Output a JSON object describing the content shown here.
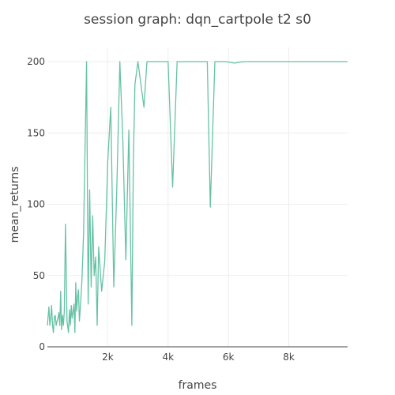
{
  "chart_data": {
    "type": "line",
    "title": "session graph: dqn_cartpole t2 s0",
    "xlabel": "frames",
    "ylabel": "mean_returns",
    "xlim": [
      0,
      9950
    ],
    "ylim": [
      0,
      210
    ],
    "x_ticks": [
      2000,
      4000,
      6000,
      8000
    ],
    "x_tick_labels": [
      "2k",
      "4k",
      "6k",
      "8k"
    ],
    "y_ticks": [
      0,
      50,
      100,
      150,
      200
    ],
    "y_tick_labels": [
      "0",
      "50",
      "100",
      "150",
      "200"
    ],
    "grid": true,
    "legend": "none",
    "line_color": "#66c2a5",
    "series": [
      {
        "x": [
          0,
          50,
          80,
          110,
          140,
          170,
          200,
          230,
          260,
          290,
          320,
          350,
          380,
          410,
          440,
          470,
          500,
          530,
          560,
          600,
          650,
          700,
          730,
          760,
          790,
          820,
          850,
          880,
          910,
          940,
          970,
          1000,
          1030,
          1060,
          1100,
          1150,
          1200,
          1250,
          1300,
          1350,
          1400,
          1450,
          1500,
          1550,
          1600,
          1650,
          1700,
          1800,
          1900,
          2000,
          2100,
          2200,
          2300,
          2400,
          2500,
          2600,
          2700,
          2800,
          2850,
          2900,
          3000,
          3200,
          3300,
          3500,
          3600,
          4000,
          4150,
          4300,
          4500,
          5000,
          5300,
          5400,
          5550,
          5900,
          6200,
          6500,
          7000,
          8000,
          9000,
          9950
        ],
        "y": [
          15,
          28,
          15,
          20,
          29,
          15,
          10,
          21,
          22,
          15,
          18,
          20,
          24,
          15,
          39,
          12,
          22,
          15,
          25,
          86,
          18,
          10,
          26,
          15,
          29,
          20,
          25,
          30,
          10,
          45,
          25,
          35,
          40,
          18,
          30,
          49,
          80,
          140,
          200,
          30,
          110,
          42,
          92,
          50,
          63,
          15,
          70,
          39,
          60,
          130,
          168,
          42,
          110,
          200,
          145,
          61,
          152,
          15,
          130,
          184,
          200,
          168,
          200,
          200,
          200,
          200,
          112,
          200,
          200,
          200,
          200,
          98,
          200,
          200,
          199,
          200,
          200,
          200,
          200,
          200
        ]
      }
    ]
  }
}
